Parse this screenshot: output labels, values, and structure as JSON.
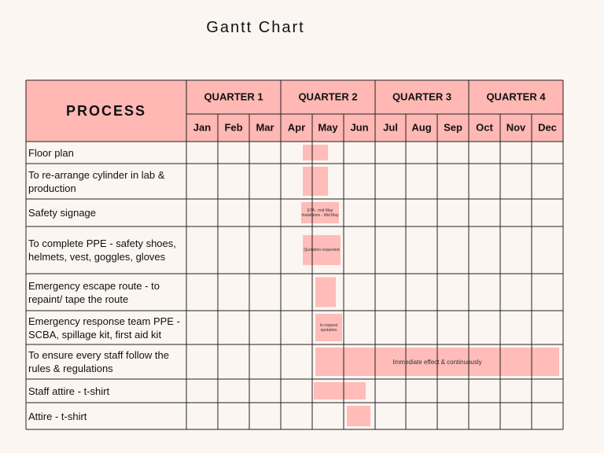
{
  "title": "Gantt Chart",
  "chart_data": {
    "type": "gantt",
    "title": "Gantt Chart",
    "process_header": "PROCESS",
    "quarters": [
      "QUARTER 1",
      "QUARTER 2",
      "QUARTER 3",
      "QUARTER 4"
    ],
    "months": [
      "Jan",
      "Feb",
      "Mar",
      "Apr",
      "May",
      "Jun",
      "Jul",
      "Aug",
      "Sep",
      "Oct",
      "Nov",
      "Dec"
    ],
    "tasks": [
      {
        "name": "Floor plan",
        "start": 3.7,
        "end": 4.5,
        "note": ""
      },
      {
        "name": "To re-arrange cylinder in lab & production",
        "start": 3.7,
        "end": 4.5,
        "note": ""
      },
      {
        "name": "Safety signage",
        "start": 3.65,
        "end": 4.85,
        "note": "ETA - mid May Installation - Mid May"
      },
      {
        "name": "To complete PPE - safety shoes, helmets, vest, goggles, gloves",
        "start": 3.7,
        "end": 4.9,
        "note": "Quotation requested"
      },
      {
        "name": "Emergency escape route - to repaint/ tape the route",
        "start": 4.1,
        "end": 4.75,
        "note": ""
      },
      {
        "name": "Emergency response team PPE - SCBA, spillage kit, first aid kit",
        "start": 4.1,
        "end": 4.95,
        "note": "to request quotation"
      },
      {
        "name": "To ensure every staff follow the rules & regulations",
        "start": 4.1,
        "end": 11.85,
        "note": "Immediate effect & continuously"
      },
      {
        "name": "Staff attire - t-shirt",
        "start": 4.05,
        "end": 5.7,
        "note": ""
      },
      {
        "name": "Attire - t-shirt",
        "start": 5.1,
        "end": 5.85,
        "note": ""
      }
    ],
    "colors": {
      "header": "#ffb8b4",
      "bar": "#ffbcb8",
      "background": "#fcf6f2",
      "grid": "#222222"
    }
  }
}
